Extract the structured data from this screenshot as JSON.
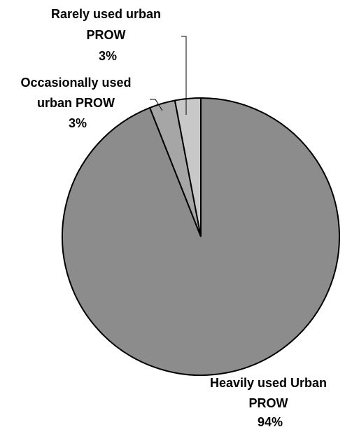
{
  "chart_data": {
    "type": "pie",
    "slices": [
      {
        "label_lines": [
          "Heavily used Urban",
          "PROW"
        ],
        "value_label": "94%",
        "value": 94,
        "color": "#8c8c8c"
      },
      {
        "label_lines": [
          "Occasionally used",
          "urban PROW"
        ],
        "value_label": "3%",
        "value": 3,
        "color": "#a6a6a6"
      },
      {
        "label_lines": [
          "Rarely used urban",
          "PROW"
        ],
        "value_label": "3%",
        "value": 3,
        "color": "#c8c8c8"
      }
    ]
  }
}
